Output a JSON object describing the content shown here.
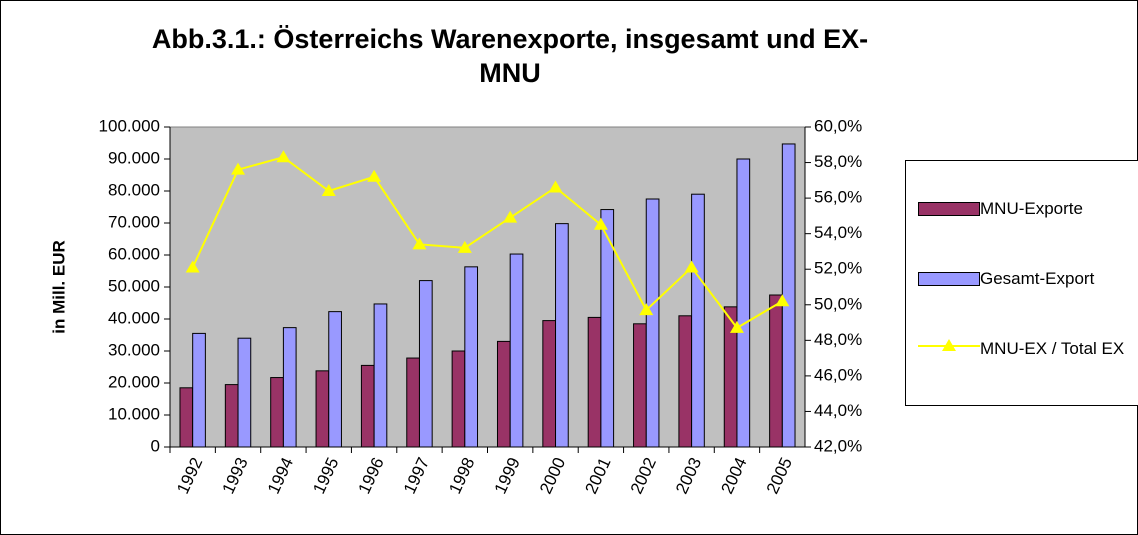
{
  "chart_data": {
    "type": "bar_line",
    "title": "Abb.3.1.: Österreichs Warenexporte, insgesamt und EX-MNU",
    "y_label": "in Mill. EUR",
    "categories": [
      "1992",
      "1993",
      "1994",
      "1995",
      "1996",
      "1997",
      "1998",
      "1999",
      "2000",
      "2001",
      "2002",
      "2003",
      "2004",
      "2005"
    ],
    "series": [
      {
        "name": "MNU-Exporte",
        "type": "bar",
        "color": "#993366",
        "values": [
          18500,
          19500,
          21700,
          23800,
          25500,
          27800,
          30000,
          33000,
          39500,
          40500,
          38500,
          41000,
          43800,
          47500
        ]
      },
      {
        "name": "Gesamt-Export",
        "type": "bar",
        "color": "#9999ff",
        "values": [
          35500,
          34000,
          37300,
          42300,
          44700,
          52000,
          56300,
          60300,
          69800,
          74200,
          77500,
          79000,
          90000,
          94700
        ]
      },
      {
        "name": "MNU-EX / Total EX",
        "type": "line",
        "axis": "y2",
        "color": "#ffff00",
        "values": [
          52.1,
          57.6,
          58.3,
          56.4,
          57.2,
          53.4,
          53.2,
          54.9,
          56.6,
          54.5,
          49.7,
          52.1,
          48.7,
          50.2
        ]
      }
    ],
    "ylim": [
      0,
      100000
    ],
    "yticks": [
      0,
      {
        "value": 10000,
        "label": "10.000"
      },
      {
        "value": 20000,
        "label": "20.000"
      },
      {
        "value": 30000,
        "label": "30.000"
      },
      {
        "value": 40000,
        "label": "40.000"
      },
      {
        "value": 50000,
        "label": "50.000"
      },
      {
        "value": 60000,
        "label": "60.000"
      },
      {
        "value": 70000,
        "label": "70.000"
      },
      {
        "value": 80000,
        "label": "80.000"
      },
      {
        "value": 90000,
        "label": "90.000"
      },
      {
        "value": 100000,
        "label": "100.000"
      }
    ],
    "y2lim": [
      42,
      60
    ],
    "y2ticks": [
      {
        "value": 42,
        "label": "42,0%"
      },
      {
        "value": 44,
        "label": "44,0%"
      },
      {
        "value": 46,
        "label": "46,0%"
      },
      {
        "value": 48,
        "label": "48,0%"
      },
      {
        "value": 50,
        "label": "50,0%"
      },
      {
        "value": 52,
        "label": "52,0%"
      },
      {
        "value": 54,
        "label": "54,0%"
      },
      {
        "value": 56,
        "label": "56,0%"
      },
      {
        "value": 58,
        "label": "58,0%"
      },
      {
        "value": 60,
        "label": "60,0%"
      }
    ],
    "plot_background": "#c0c0c0",
    "legend": "right"
  }
}
